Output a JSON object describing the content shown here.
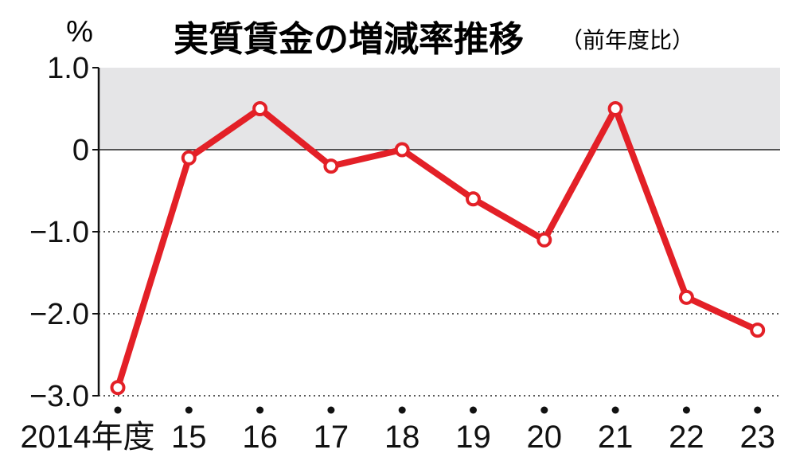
{
  "chart_data": {
    "type": "line",
    "title": "実質賃金の増減率推移",
    "subtitle": "（前年度比）",
    "ylabel": "%",
    "xlabel": "",
    "categories": [
      "2014年度",
      "15",
      "16",
      "17",
      "18",
      "19",
      "20",
      "21",
      "22",
      "23"
    ],
    "series": [
      {
        "values": [
          -2.9,
          -0.1,
          0.5,
          -0.2,
          0.0,
          -0.6,
          -1.1,
          0.5,
          -1.8,
          -2.2
        ]
      }
    ],
    "ylim": [
      -3.0,
      1.0
    ],
    "yticks": [
      1.0,
      0,
      -1.0,
      -2.0,
      -3.0
    ],
    "ytick_labels": [
      "1.0",
      "0",
      "−1.0",
      "−2.0",
      "−3.0"
    ],
    "shaded_band": [
      0,
      1.0
    ],
    "grid": "dotted horizontal lines at negative ticks",
    "legend": "none",
    "colors": {
      "line": "#e32027",
      "band": "#e5e5e7",
      "axis": "#111111"
    }
  }
}
